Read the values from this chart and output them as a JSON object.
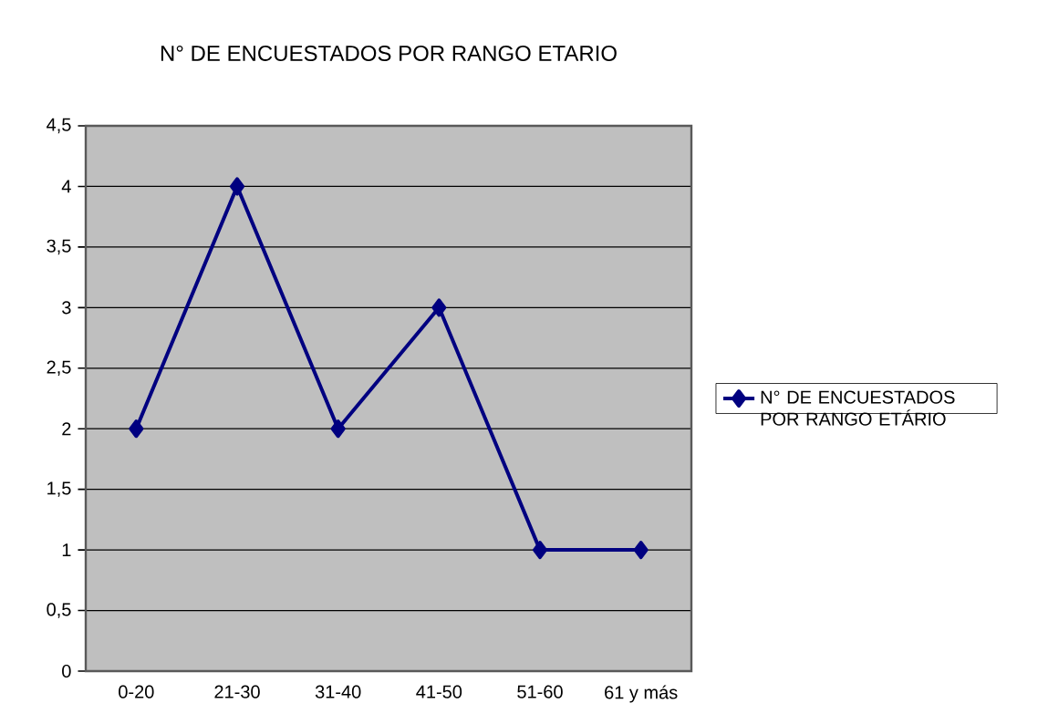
{
  "chart_data": {
    "type": "line",
    "title": "N° DE ENCUESTADOS POR RANGO ETARIO",
    "categories": [
      "0-20",
      "21-30",
      "31-40",
      "41-50",
      "51-60",
      "61 y más"
    ],
    "series": [
      {
        "name": "N° DE ENCUESTADOS POR RANGO ETÁRIO",
        "color": "#000080",
        "values": [
          2,
          4,
          2,
          3,
          1,
          1
        ]
      }
    ],
    "ylim": [
      0,
      4.5
    ],
    "yticks": [
      0,
      {
        "value": 0.5,
        "label": "0,5"
      },
      1,
      {
        "value": 1.5,
        "label": "1,5"
      },
      2,
      {
        "value": 2.5,
        "label": "2,5"
      },
      3,
      {
        "value": 3.5,
        "label": "3,5"
      },
      4,
      {
        "value": 4.5,
        "label": "4,5"
      }
    ],
    "grid": "y",
    "legend": "right",
    "marker": "diamond",
    "line_style": "solid"
  }
}
